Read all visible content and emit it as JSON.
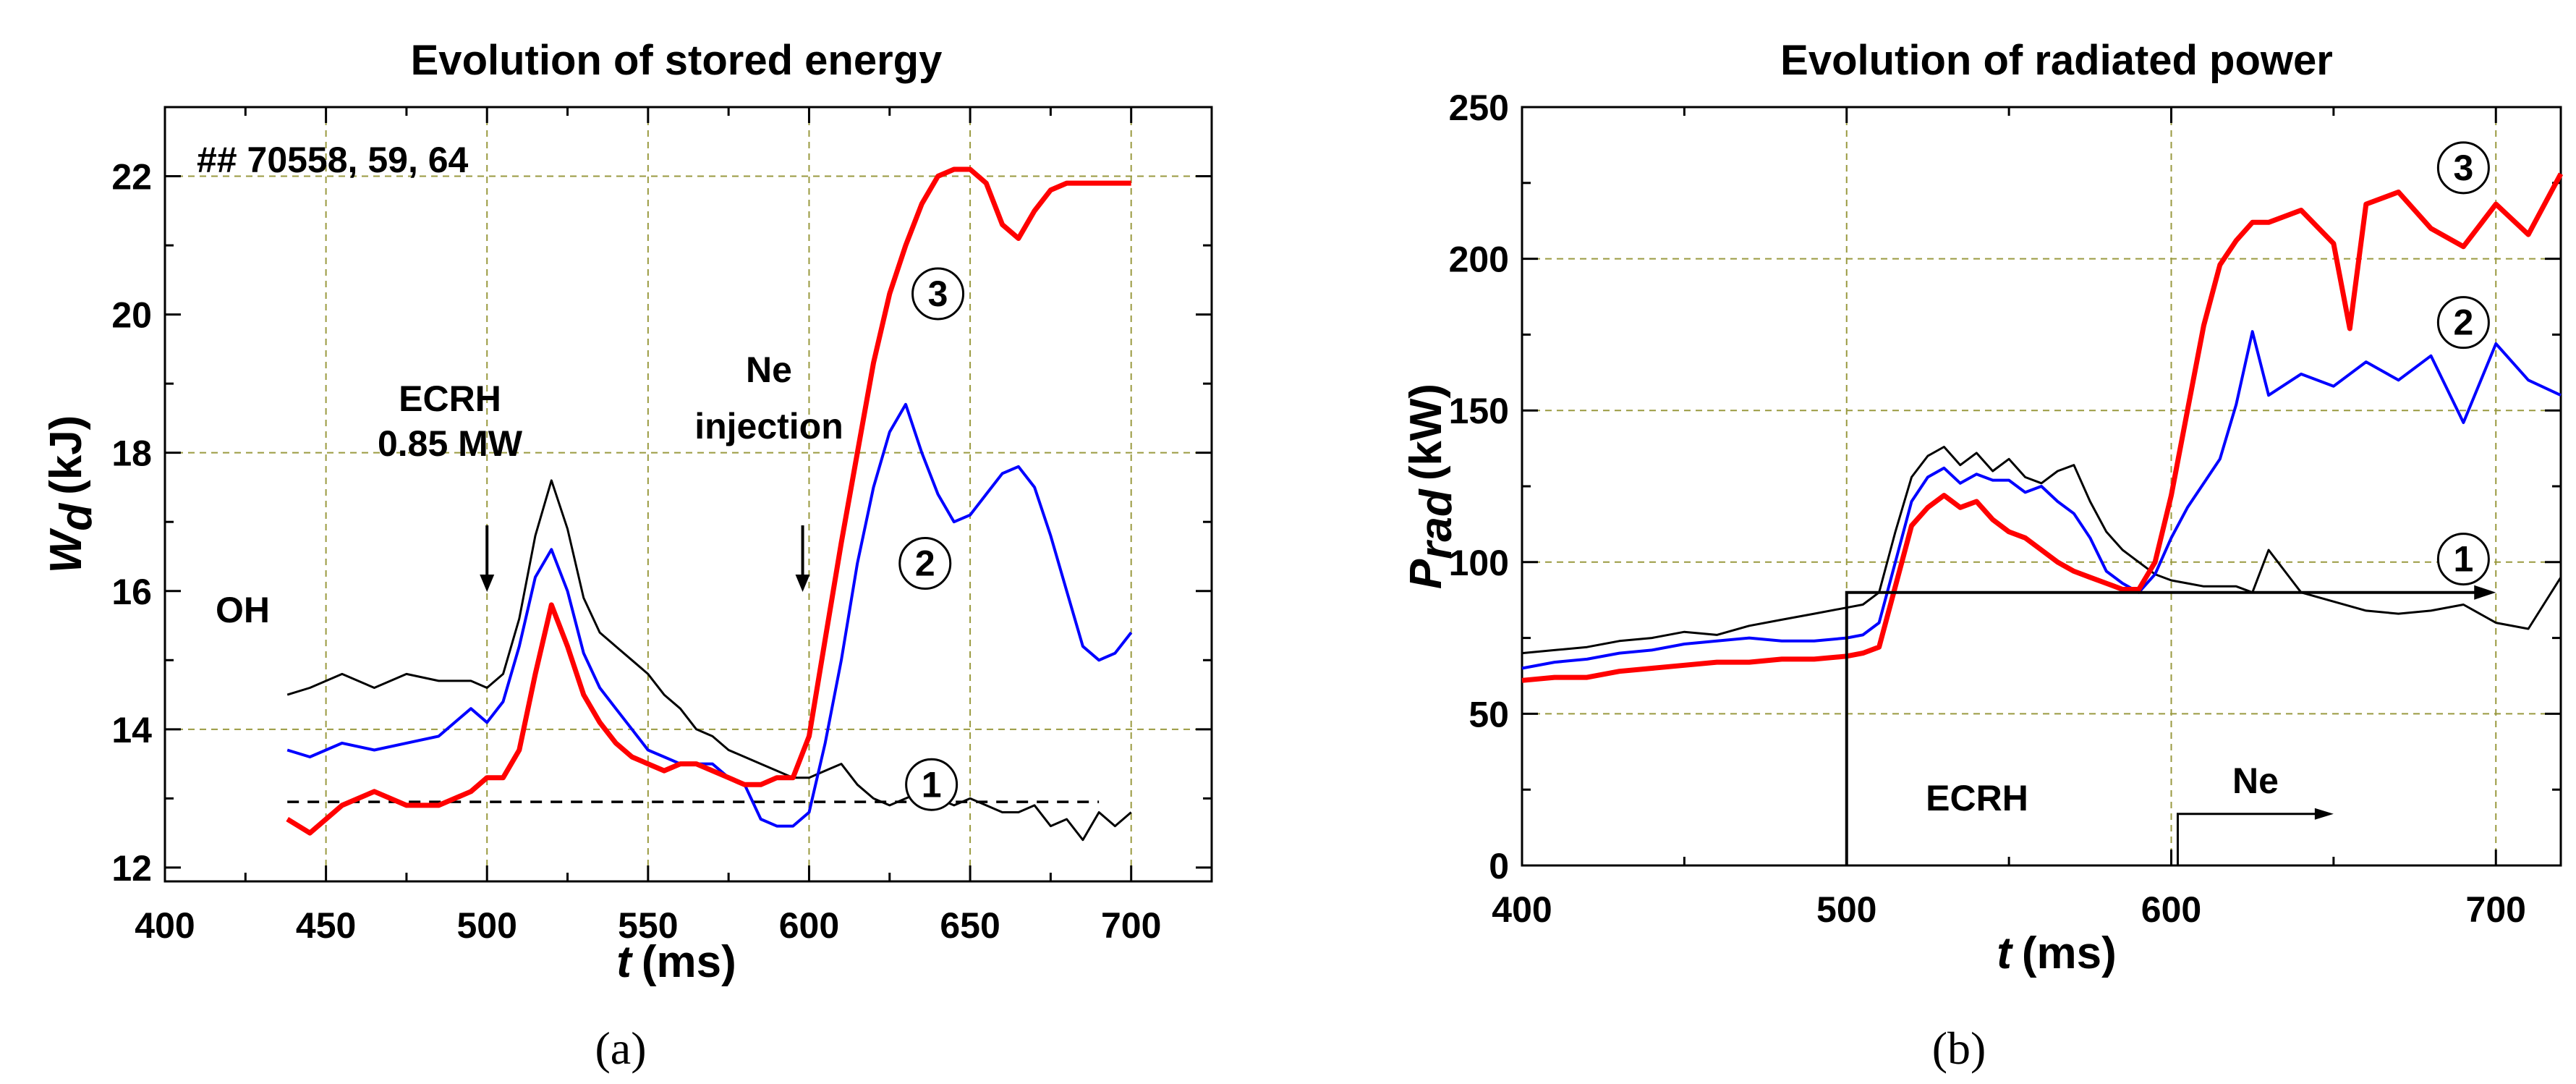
{
  "colors": {
    "black": "#000000",
    "blue": "#0000ff",
    "red": "#ff0000",
    "grid": "#9a9a40"
  },
  "captions": {
    "a": "(a)",
    "b": "(b)"
  },
  "chart_data": [
    {
      "id": "a",
      "type": "line",
      "title": "Evolution of stored energy",
      "xlabel_main": "t",
      "xlabel_unit": "(ms)",
      "ylabel_main": "W",
      "ylabel_sub": "d",
      "ylabel_unit": "(kJ)",
      "xlim": [
        400,
        725
      ],
      "ylim": [
        11.8,
        23.0
      ],
      "xticks": [
        400,
        450,
        500,
        550,
        600,
        650,
        700
      ],
      "xtick_labels": [
        "400",
        "450",
        "500",
        "550",
        "600",
        "650",
        "700"
      ],
      "yticks": [
        12,
        14,
        16,
        18,
        20,
        22
      ],
      "ytick_labels": [
        "12",
        "14",
        "16",
        "18",
        "20",
        "22"
      ],
      "grid_x": [
        450,
        500,
        550,
        600,
        650,
        700
      ],
      "grid_y": [
        14,
        18,
        22
      ],
      "reference_line": 12.95,
      "annotations": {
        "shots": "## 70558, 59, 64",
        "oh": "OH",
        "ecrh_line1": "ECRH",
        "ecrh_line2": "0.85 MW",
        "ne_line1": "Ne",
        "ne_line2": "injection"
      },
      "arrows_at": [
        500,
        598
      ],
      "series": [
        {
          "name": "1",
          "color": "#000000",
          "x": [
            438,
            445,
            455,
            465,
            475,
            485,
            495,
            500,
            505,
            510,
            515,
            520,
            525,
            530,
            535,
            540,
            545,
            550,
            555,
            560,
            565,
            570,
            575,
            580,
            585,
            590,
            595,
            600,
            605,
            610,
            615,
            620,
            625,
            630,
            635,
            640,
            645,
            650,
            655,
            660,
            665,
            670,
            675,
            680,
            685,
            690,
            695,
            700
          ],
          "y": [
            14.5,
            14.6,
            14.8,
            14.6,
            14.8,
            14.7,
            14.7,
            14.6,
            14.8,
            15.6,
            16.8,
            17.6,
            16.9,
            15.9,
            15.4,
            15.2,
            15.0,
            14.8,
            14.5,
            14.3,
            14.0,
            13.9,
            13.7,
            13.6,
            13.5,
            13.4,
            13.3,
            13.3,
            13.4,
            13.5,
            13.2,
            13.0,
            12.9,
            13.0,
            13.1,
            13.0,
            12.9,
            13.0,
            12.9,
            12.8,
            12.8,
            12.9,
            12.6,
            12.7,
            12.4,
            12.8,
            12.6,
            12.8
          ]
        },
        {
          "name": "2",
          "color": "#0000ff",
          "x": [
            438,
            445,
            455,
            465,
            475,
            485,
            495,
            500,
            505,
            510,
            515,
            520,
            525,
            530,
            535,
            540,
            545,
            550,
            555,
            560,
            565,
            570,
            575,
            580,
            585,
            590,
            595,
            600,
            605,
            610,
            615,
            620,
            625,
            630,
            635,
            640,
            645,
            650,
            655,
            660,
            665,
            670,
            675,
            680,
            685,
            690,
            695,
            700
          ],
          "y": [
            13.7,
            13.6,
            13.8,
            13.7,
            13.8,
            13.9,
            14.3,
            14.1,
            14.4,
            15.2,
            16.2,
            16.6,
            16.0,
            15.1,
            14.6,
            14.3,
            14.0,
            13.7,
            13.6,
            13.5,
            13.5,
            13.5,
            13.3,
            13.2,
            12.7,
            12.6,
            12.6,
            12.8,
            13.8,
            15.0,
            16.4,
            17.5,
            18.3,
            18.7,
            18.0,
            17.4,
            17.0,
            17.1,
            17.4,
            17.7,
            17.8,
            17.5,
            16.8,
            16.0,
            15.2,
            15.0,
            15.1,
            15.4
          ]
        },
        {
          "name": "3",
          "color": "#ff0000",
          "x": [
            438,
            445,
            455,
            465,
            475,
            485,
            495,
            500,
            505,
            510,
            515,
            520,
            525,
            530,
            535,
            540,
            545,
            550,
            555,
            560,
            565,
            570,
            575,
            580,
            585,
            590,
            595,
            600,
            605,
            610,
            615,
            620,
            625,
            630,
            635,
            640,
            645,
            650,
            655,
            660,
            665,
            670,
            675,
            680,
            685,
            690,
            695,
            700
          ],
          "y": [
            12.7,
            12.5,
            12.9,
            13.1,
            12.9,
            12.9,
            13.1,
            13.3,
            13.3,
            13.7,
            14.8,
            15.8,
            15.2,
            14.5,
            14.1,
            13.8,
            13.6,
            13.5,
            13.4,
            13.5,
            13.5,
            13.4,
            13.3,
            13.2,
            13.2,
            13.3,
            13.3,
            13.9,
            15.3,
            16.7,
            18.0,
            19.3,
            20.3,
            21.0,
            21.6,
            22.0,
            22.1,
            22.1,
            21.9,
            21.3,
            21.1,
            21.5,
            21.8,
            21.9,
            21.9,
            21.9,
            21.9,
            21.9
          ]
        }
      ],
      "curve_labels": [
        {
          "text": "1",
          "x": 638,
          "y": 13.2
        },
        {
          "text": "2",
          "x": 636,
          "y": 16.4
        },
        {
          "text": "3",
          "x": 640,
          "y": 20.3
        }
      ]
    },
    {
      "id": "b",
      "type": "line",
      "title": "Evolution of radiated power",
      "xlabel_main": "t",
      "xlabel_unit": "(ms)",
      "ylabel_main": "P",
      "ylabel_sub": "rad",
      "ylabel_unit": "(kW)",
      "xlim": [
        400,
        720
      ],
      "ylim": [
        0,
        250
      ],
      "xticks": [
        400,
        500,
        600,
        700
      ],
      "xtick_labels": [
        "400",
        "500",
        "600",
        "700"
      ],
      "yticks": [
        0,
        50,
        100,
        150,
        200,
        250
      ],
      "ytick_labels": [
        "0",
        "50",
        "100",
        "150",
        "200",
        "250"
      ],
      "grid_x": [
        500,
        600,
        700
      ],
      "grid_y": [
        50,
        100,
        150,
        200
      ],
      "annotations": {
        "ecrh": "ECRH",
        "ne": "Ne"
      },
      "ecrh_span": {
        "x_start": 500,
        "x_end": 700,
        "y": 90
      },
      "ne_span": {
        "x_start": 602,
        "x_end": 650,
        "y": 17
      },
      "series": [
        {
          "name": "1",
          "color": "#000000",
          "x": [
            400,
            410,
            420,
            430,
            440,
            450,
            460,
            470,
            480,
            490,
            500,
            505,
            510,
            515,
            520,
            525,
            530,
            535,
            540,
            545,
            550,
            555,
            560,
            565,
            570,
            575,
            580,
            585,
            590,
            595,
            600,
            605,
            610,
            615,
            620,
            625,
            630,
            640,
            650,
            660,
            670,
            680,
            690,
            700,
            710,
            720
          ],
          "y": [
            70,
            71,
            72,
            74,
            75,
            77,
            76,
            79,
            81,
            83,
            85,
            86,
            90,
            110,
            128,
            135,
            138,
            132,
            136,
            130,
            134,
            128,
            126,
            130,
            132,
            120,
            110,
            104,
            100,
            96,
            94,
            93,
            92,
            92,
            92,
            90,
            104,
            90,
            87,
            84,
            83,
            84,
            86,
            80,
            78,
            95
          ]
        },
        {
          "name": "2",
          "color": "#0000ff",
          "x": [
            400,
            410,
            420,
            430,
            440,
            450,
            460,
            470,
            480,
            490,
            500,
            505,
            510,
            515,
            520,
            525,
            530,
            535,
            540,
            545,
            550,
            555,
            560,
            565,
            570,
            575,
            580,
            585,
            590,
            595,
            600,
            605,
            610,
            615,
            620,
            625,
            630,
            640,
            650,
            660,
            670,
            680,
            690,
            700,
            710,
            720
          ],
          "y": [
            65,
            67,
            68,
            70,
            71,
            73,
            74,
            75,
            74,
            74,
            75,
            76,
            80,
            100,
            120,
            128,
            131,
            126,
            129,
            127,
            127,
            123,
            125,
            120,
            116,
            108,
            97,
            93,
            90,
            96,
            108,
            118,
            126,
            134,
            152,
            176,
            155,
            162,
            158,
            166,
            160,
            168,
            146,
            172,
            160,
            155
          ]
        },
        {
          "name": "3",
          "color": "#ff0000",
          "x": [
            400,
            410,
            420,
            430,
            440,
            450,
            460,
            470,
            480,
            490,
            500,
            505,
            510,
            515,
            520,
            525,
            530,
            535,
            540,
            545,
            550,
            555,
            560,
            565,
            570,
            575,
            580,
            585,
            590,
            595,
            600,
            605,
            610,
            615,
            620,
            625,
            630,
            640,
            650,
            655,
            660,
            670,
            680,
            690,
            700,
            710,
            720
          ],
          "y": [
            61,
            62,
            62,
            64,
            65,
            66,
            67,
            67,
            68,
            68,
            69,
            70,
            72,
            92,
            112,
            118,
            122,
            118,
            120,
            114,
            110,
            108,
            104,
            100,
            97,
            95,
            93,
            91,
            91,
            100,
            122,
            150,
            178,
            198,
            206,
            212,
            212,
            216,
            205,
            177,
            218,
            222,
            210,
            204,
            218,
            208,
            228
          ]
        }
      ],
      "curve_labels": [
        {
          "text": "1",
          "x": 690,
          "y": 101
        },
        {
          "text": "2",
          "x": 690,
          "y": 179
        },
        {
          "text": "3",
          "x": 690,
          "y": 230
        }
      ]
    }
  ]
}
